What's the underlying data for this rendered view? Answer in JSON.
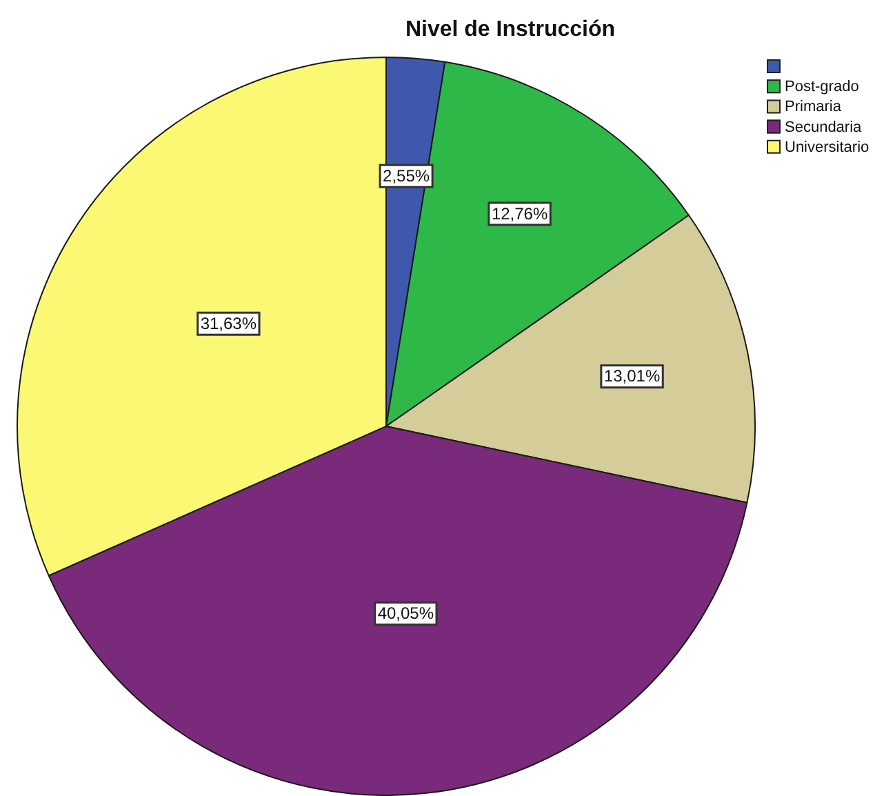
{
  "chart_data": {
    "type": "pie",
    "title": "Nivel de Instrucción",
    "categories": [
      null,
      "Post-grado",
      "Primaria",
      "Secundaria",
      "Universitario"
    ],
    "values": [
      2.55,
      12.76,
      13.01,
      40.05,
      31.63
    ],
    "colors": [
      "#3e58ac",
      "#2eb848",
      "#d4cc99",
      "#7a2a7a",
      "#fbf873"
    ],
    "value_labels": [
      "2,55%",
      "12,76%",
      "13,01%",
      "40,05%",
      "31,63%"
    ],
    "legend": "top right"
  }
}
